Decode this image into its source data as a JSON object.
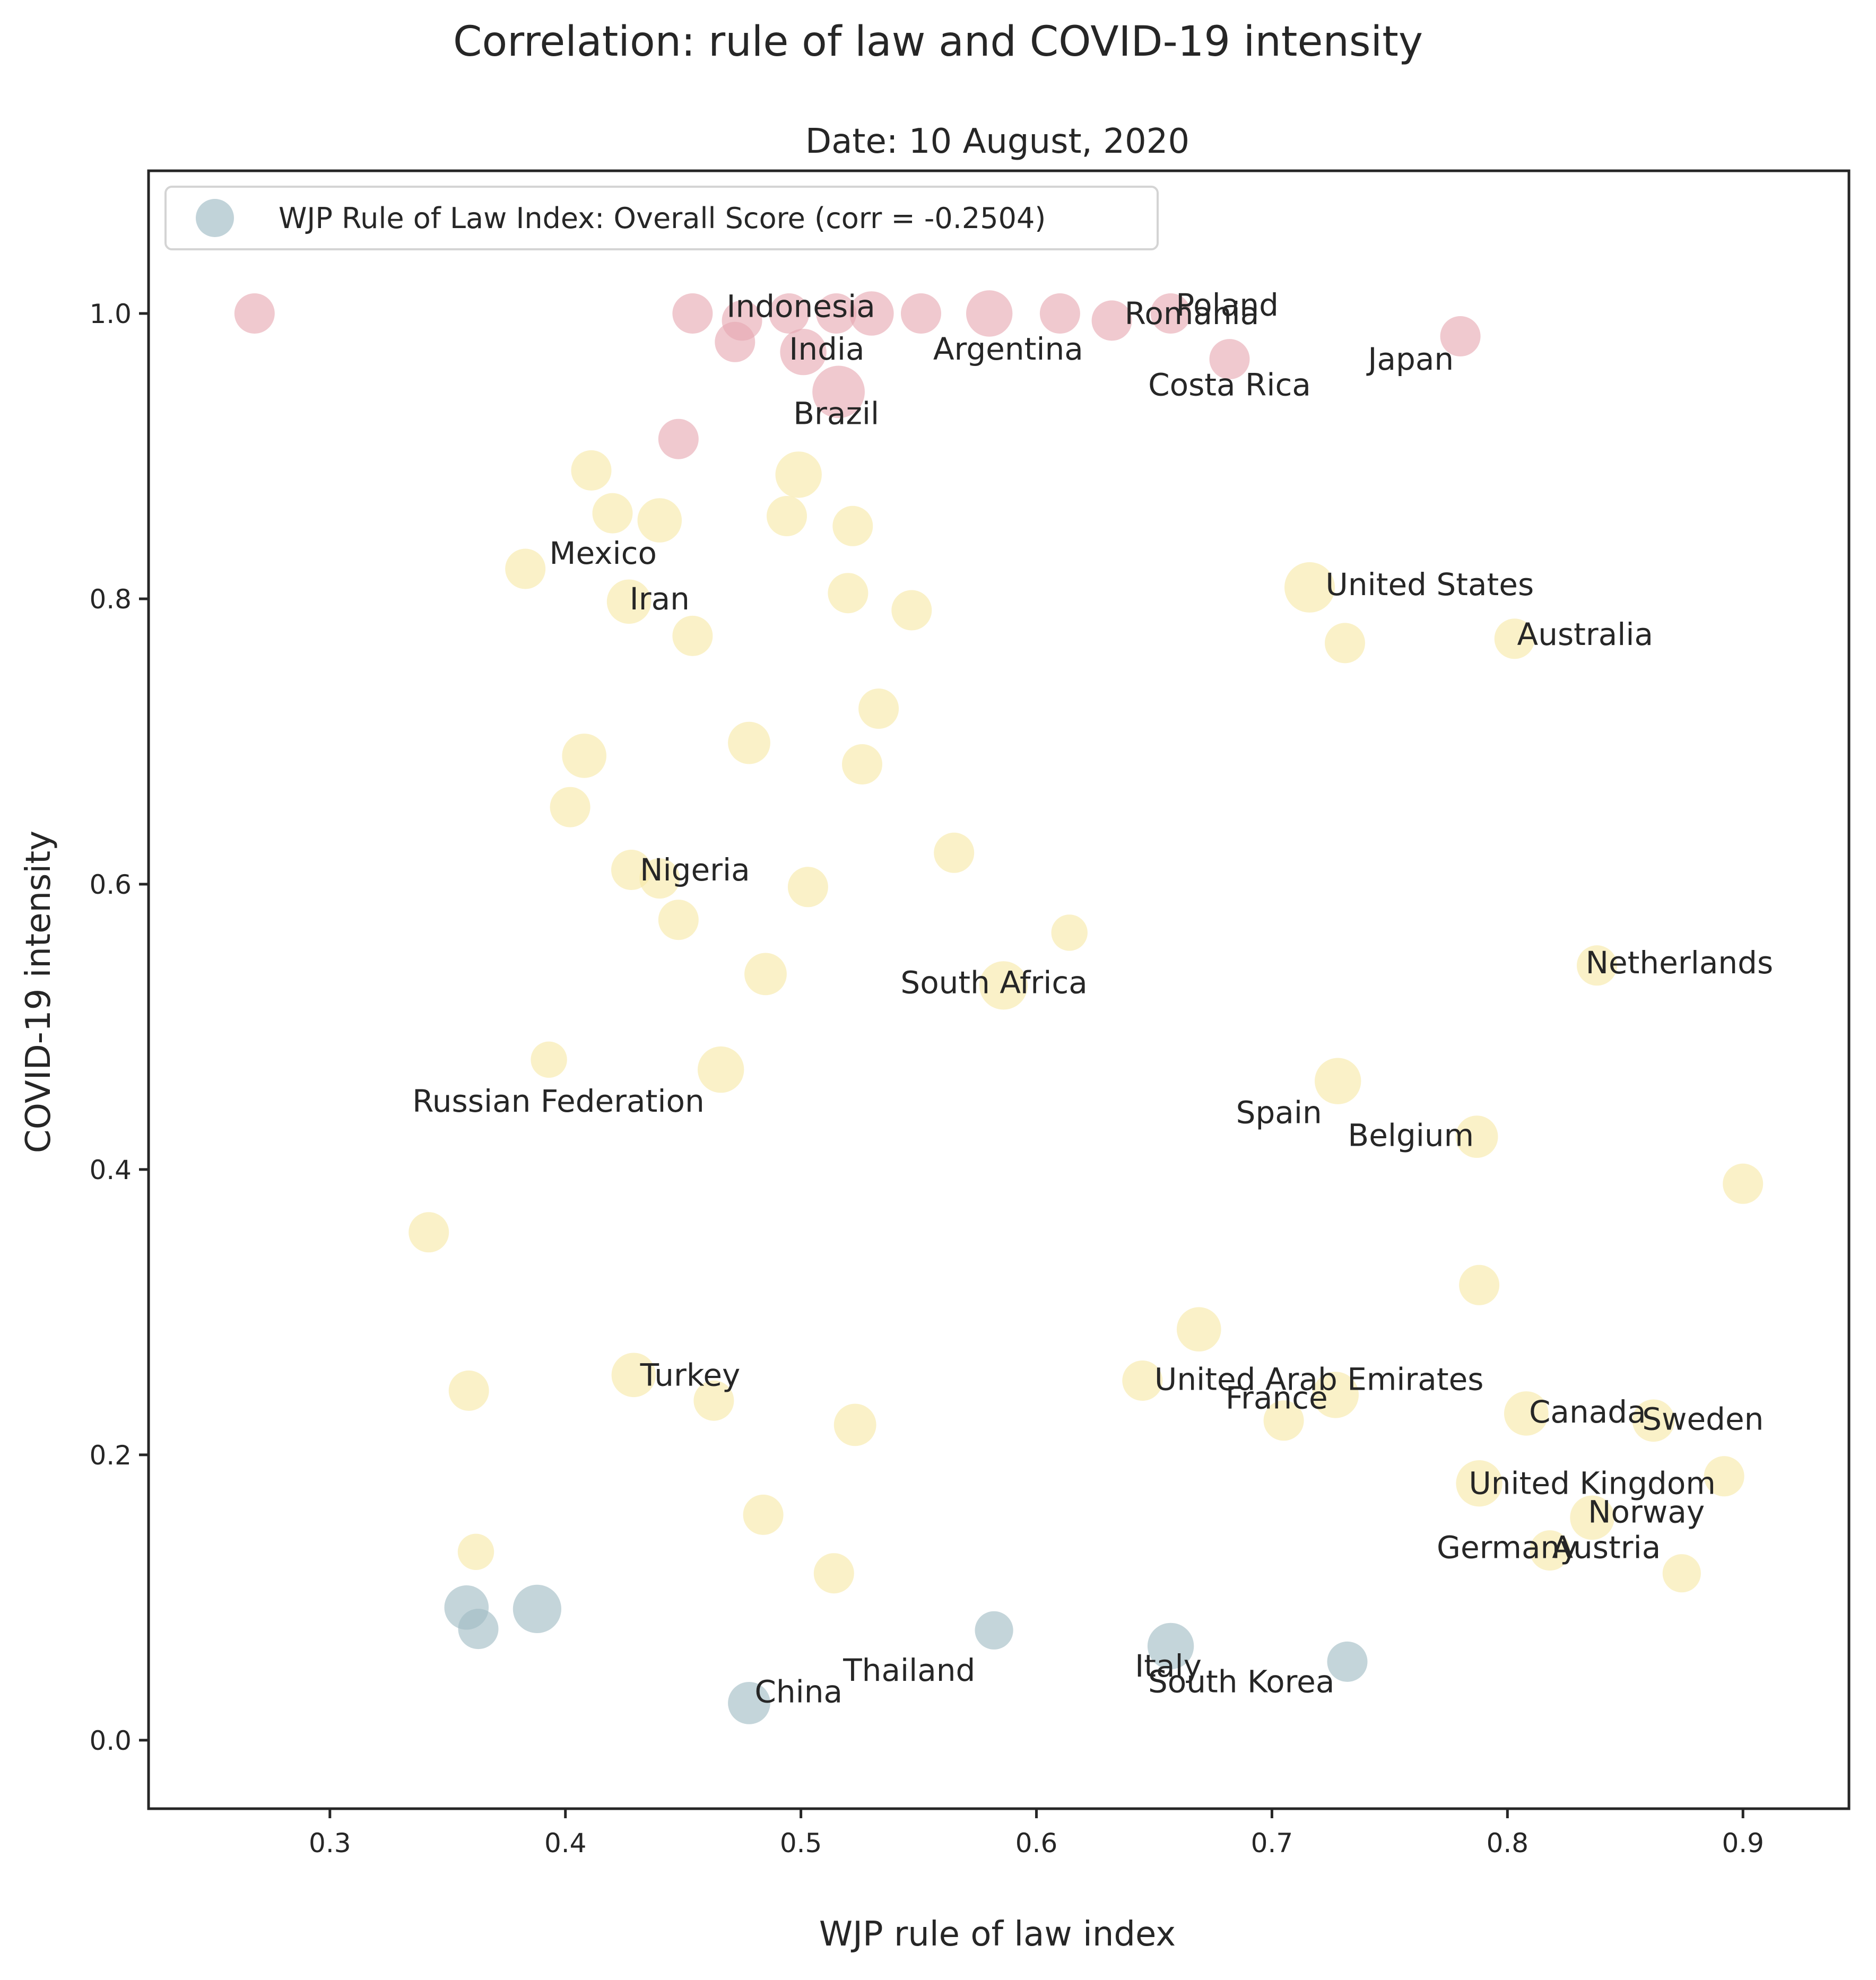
{
  "chart_data": {
    "type": "scatter",
    "title": "Correlation: rule of law and COVID-19 intensity",
    "subtitle": "Date: 10 August, 2020",
    "xlabel": "WJP rule of law index",
    "ylabel": "COVID-19 intensity",
    "xlim": [
      0.223,
      0.945
    ],
    "ylim": [
      -0.048,
      1.1
    ],
    "xticks": [
      "0.3",
      "0.4",
      "0.5",
      "0.6",
      "0.7",
      "0.8",
      "0.9"
    ],
    "yticks": [
      "0.0",
      "0.2",
      "0.4",
      "0.6",
      "0.8",
      "1.0"
    ],
    "grid": false,
    "legend": {
      "placement": "upper-left",
      "label": "WJP Rule of Law Index: Overall Score (corr = -0.2504)",
      "marker_color": "#9fbcc4"
    },
    "colors": {
      "high": "#e6a8b2",
      "mid": "#f7e9a6",
      "low": "#9fbcc4"
    },
    "points": [
      {
        "x": 0.268,
        "y": 1.0,
        "c": "high",
        "s": 1
      },
      {
        "x": 0.454,
        "y": 1.0,
        "c": "high",
        "s": 1
      },
      {
        "x": 0.475,
        "y": 0.995,
        "c": "high",
        "s": 1
      },
      {
        "x": 0.495,
        "y": 1.0,
        "c": "high",
        "s": 1
      },
      {
        "x": 0.515,
        "y": 1.0,
        "c": "high",
        "s": 1
      },
      {
        "x": 0.53,
        "y": 1.0,
        "c": "high",
        "s": 1.1
      },
      {
        "x": 0.551,
        "y": 1.0,
        "c": "high",
        "s": 1
      },
      {
        "x": 0.58,
        "y": 1.0,
        "c": "high",
        "s": 1.15
      },
      {
        "x": 0.61,
        "y": 1.0,
        "c": "high",
        "s": 1
      },
      {
        "x": 0.632,
        "y": 0.995,
        "c": "high",
        "s": 1
      },
      {
        "x": 0.657,
        "y": 1.0,
        "c": "high",
        "s": 1
      },
      {
        "x": 0.472,
        "y": 0.98,
        "c": "high",
        "s": 1
      },
      {
        "x": 0.501,
        "y": 0.973,
        "c": "high",
        "s": 1.15
      },
      {
        "x": 0.682,
        "y": 0.968,
        "c": "high",
        "s": 1
      },
      {
        "x": 0.78,
        "y": 0.984,
        "c": "high",
        "s": 1
      },
      {
        "x": 0.516,
        "y": 0.945,
        "c": "high",
        "s": 1.3
      },
      {
        "x": 0.448,
        "y": 0.912,
        "c": "high",
        "s": 1
      },
      {
        "x": 0.411,
        "y": 0.89,
        "c": "mid",
        "s": 1
      },
      {
        "x": 0.499,
        "y": 0.887,
        "c": "mid",
        "s": 1.15
      },
      {
        "x": 0.42,
        "y": 0.86,
        "c": "mid",
        "s": 1
      },
      {
        "x": 0.44,
        "y": 0.855,
        "c": "mid",
        "s": 1.1
      },
      {
        "x": 0.494,
        "y": 0.858,
        "c": "mid",
        "s": 1
      },
      {
        "x": 0.522,
        "y": 0.851,
        "c": "mid",
        "s": 1
      },
      {
        "x": 0.383,
        "y": 0.821,
        "c": "mid",
        "s": 1
      },
      {
        "x": 0.427,
        "y": 0.798,
        "c": "mid",
        "s": 1.1
      },
      {
        "x": 0.52,
        "y": 0.804,
        "c": "mid",
        "s": 1
      },
      {
        "x": 0.547,
        "y": 0.792,
        "c": "mid",
        "s": 1
      },
      {
        "x": 0.454,
        "y": 0.774,
        "c": "mid",
        "s": 1
      },
      {
        "x": 0.716,
        "y": 0.808,
        "c": "mid",
        "s": 1.25
      },
      {
        "x": 0.731,
        "y": 0.769,
        "c": "mid",
        "s": 1
      },
      {
        "x": 0.803,
        "y": 0.772,
        "c": "mid",
        "s": 1
      },
      {
        "x": 0.533,
        "y": 0.723,
        "c": "mid",
        "s": 1
      },
      {
        "x": 0.478,
        "y": 0.699,
        "c": "mid",
        "s": 1.05
      },
      {
        "x": 0.408,
        "y": 0.69,
        "c": "mid",
        "s": 1.1
      },
      {
        "x": 0.526,
        "y": 0.684,
        "c": "mid",
        "s": 1
      },
      {
        "x": 0.402,
        "y": 0.654,
        "c": "mid",
        "s": 1
      },
      {
        "x": 0.565,
        "y": 0.622,
        "c": "mid",
        "s": 1
      },
      {
        "x": 0.428,
        "y": 0.61,
        "c": "mid",
        "s": 1
      },
      {
        "x": 0.44,
        "y": 0.604,
        "c": "mid",
        "s": 1
      },
      {
        "x": 0.503,
        "y": 0.598,
        "c": "mid",
        "s": 1
      },
      {
        "x": 0.448,
        "y": 0.575,
        "c": "mid",
        "s": 1
      },
      {
        "x": 0.614,
        "y": 0.566,
        "c": "mid",
        "s": 0.9
      },
      {
        "x": 0.838,
        "y": 0.543,
        "c": "mid",
        "s": 1
      },
      {
        "x": 0.485,
        "y": 0.537,
        "c": "mid",
        "s": 1.05
      },
      {
        "x": 0.586,
        "y": 0.529,
        "c": "mid",
        "s": 1.2
      },
      {
        "x": 0.393,
        "y": 0.477,
        "c": "mid",
        "s": 0.9
      },
      {
        "x": 0.466,
        "y": 0.47,
        "c": "mid",
        "s": 1.15
      },
      {
        "x": 0.728,
        "y": 0.462,
        "c": "mid",
        "s": 1.15
      },
      {
        "x": 0.787,
        "y": 0.423,
        "c": "mid",
        "s": 1.05
      },
      {
        "x": 0.9,
        "y": 0.39,
        "c": "mid",
        "s": 1
      },
      {
        "x": 0.342,
        "y": 0.356,
        "c": "mid",
        "s": 1
      },
      {
        "x": 0.788,
        "y": 0.319,
        "c": "mid",
        "s": 1
      },
      {
        "x": 0.669,
        "y": 0.288,
        "c": "mid",
        "s": 1.1
      },
      {
        "x": 0.429,
        "y": 0.256,
        "c": "mid",
        "s": 1.1
      },
      {
        "x": 0.645,
        "y": 0.252,
        "c": "mid",
        "s": 1
      },
      {
        "x": 0.359,
        "y": 0.245,
        "c": "mid",
        "s": 1
      },
      {
        "x": 0.727,
        "y": 0.242,
        "c": "mid",
        "s": 1.15
      },
      {
        "x": 0.463,
        "y": 0.238,
        "c": "mid",
        "s": 1
      },
      {
        "x": 0.808,
        "y": 0.229,
        "c": "mid",
        "s": 1.1
      },
      {
        "x": 0.705,
        "y": 0.224,
        "c": "mid",
        "s": 1
      },
      {
        "x": 0.862,
        "y": 0.224,
        "c": "mid",
        "s": 1.05
      },
      {
        "x": 0.523,
        "y": 0.221,
        "c": "mid",
        "s": 1.05
      },
      {
        "x": 0.892,
        "y": 0.185,
        "c": "mid",
        "s": 1
      },
      {
        "x": 0.788,
        "y": 0.18,
        "c": "mid",
        "s": 1.15
      },
      {
        "x": 0.484,
        "y": 0.158,
        "c": "mid",
        "s": 1
      },
      {
        "x": 0.836,
        "y": 0.156,
        "c": "mid",
        "s": 1.1
      },
      {
        "x": 0.818,
        "y": 0.133,
        "c": "mid",
        "s": 1
      },
      {
        "x": 0.362,
        "y": 0.132,
        "c": "mid",
        "s": 0.9
      },
      {
        "x": 0.514,
        "y": 0.117,
        "c": "mid",
        "s": 1
      },
      {
        "x": 0.874,
        "y": 0.117,
        "c": "mid",
        "s": 0.95
      },
      {
        "x": 0.358,
        "y": 0.093,
        "c": "low",
        "s": 1.1
      },
      {
        "x": 0.388,
        "y": 0.092,
        "c": "low",
        "s": 1.2
      },
      {
        "x": 0.363,
        "y": 0.078,
        "c": "low",
        "s": 1
      },
      {
        "x": 0.582,
        "y": 0.077,
        "c": "low",
        "s": 0.95
      },
      {
        "x": 0.657,
        "y": 0.066,
        "c": "low",
        "s": 1.15
      },
      {
        "x": 0.732,
        "y": 0.055,
        "c": "low",
        "s": 1
      },
      {
        "x": 0.478,
        "y": 0.026,
        "c": "low",
        "s": 1.05
      }
    ],
    "annotations": [
      {
        "text": "Indonesia",
        "x": 0.5,
        "y": 1.005
      },
      {
        "text": "Poland",
        "x": 0.681,
        "y": 1.006
      },
      {
        "text": "Romania",
        "x": 0.666,
        "y": 1.0
      },
      {
        "text": "India",
        "x": 0.511,
        "y": 0.975
      },
      {
        "text": "Argentina",
        "x": 0.588,
        "y": 0.975
      },
      {
        "text": "Japan",
        "x": 0.759,
        "y": 0.968
      },
      {
        "text": "Costa Rica",
        "x": 0.682,
        "y": 0.95
      },
      {
        "text": "Brazil",
        "x": 0.515,
        "y": 0.93
      },
      {
        "text": "Mexico",
        "x": 0.416,
        "y": 0.832
      },
      {
        "text": "Iran",
        "x": 0.44,
        "y": 0.8
      },
      {
        "text": "United States",
        "x": 0.767,
        "y": 0.81
      },
      {
        "text": "Australia",
        "x": 0.833,
        "y": 0.775
      },
      {
        "text": "Nigeria",
        "x": 0.455,
        "y": 0.61
      },
      {
        "text": "Netherlands",
        "x": 0.873,
        "y": 0.545
      },
      {
        "text": "South Africa",
        "x": 0.582,
        "y": 0.531
      },
      {
        "text": "Russian Federation",
        "x": 0.397,
        "y": 0.448
      },
      {
        "text": "Spain",
        "x": 0.703,
        "y": 0.44
      },
      {
        "text": "Belgium",
        "x": 0.759,
        "y": 0.424
      },
      {
        "text": "Turkey",
        "x": 0.453,
        "y": 0.256
      },
      {
        "text": "United Arab Emirates",
        "x": 0.72,
        "y": 0.253
      },
      {
        "text": "France",
        "x": 0.702,
        "y": 0.24
      },
      {
        "text": "Canada",
        "x": 0.834,
        "y": 0.23
      },
      {
        "text": "Sweden",
        "x": 0.883,
        "y": 0.225
      },
      {
        "text": "United Kingdom",
        "x": 0.836,
        "y": 0.18
      },
      {
        "text": "Norway",
        "x": 0.859,
        "y": 0.16
      },
      {
        "text": "Germany",
        "x": 0.8,
        "y": 0.135
      },
      {
        "text": "Austria",
        "x": 0.842,
        "y": 0.135
      },
      {
        "text": "Thailand",
        "x": 0.546,
        "y": 0.049
      },
      {
        "text": "Italy",
        "x": 0.656,
        "y": 0.052
      },
      {
        "text": "South Korea",
        "x": 0.687,
        "y": 0.041
      },
      {
        "text": "China",
        "x": 0.499,
        "y": 0.034
      }
    ]
  }
}
